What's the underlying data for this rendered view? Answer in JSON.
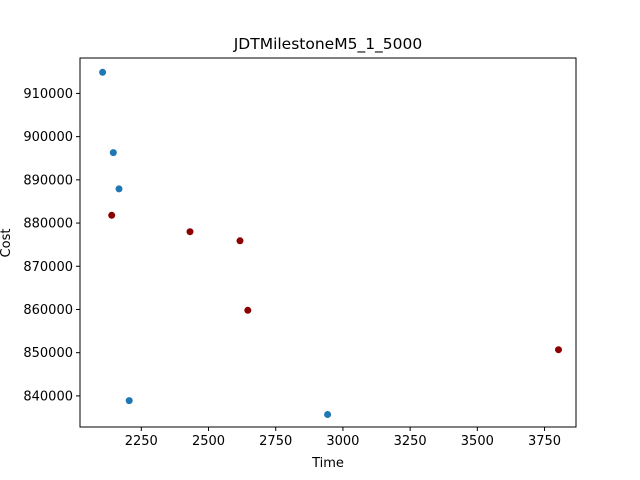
{
  "chart_data": {
    "type": "scatter",
    "title": "JDTMilestoneM5_1_5000",
    "xlabel": "Time",
    "ylabel": "Cost",
    "xlim": [
      2022,
      3867
    ],
    "ylim": [
      832800,
      918200
    ],
    "xticks": [
      2250,
      2500,
      2750,
      3000,
      3250,
      3500,
      3750
    ],
    "yticks": [
      840000,
      850000,
      860000,
      870000,
      880000,
      890000,
      900000,
      910000
    ],
    "grid": false,
    "series": [
      {
        "color": "#1f77b4",
        "points": [
          {
            "x": 2106,
            "y": 914900
          },
          {
            "x": 2146,
            "y": 896300
          },
          {
            "x": 2167,
            "y": 887900
          },
          {
            "x": 2205,
            "y": 838900
          },
          {
            "x": 2943,
            "y": 835700
          }
        ]
      },
      {
        "color": "#8b0000",
        "points": [
          {
            "x": 2140,
            "y": 881800
          },
          {
            "x": 2431,
            "y": 878000
          },
          {
            "x": 2617,
            "y": 875900
          },
          {
            "x": 2646,
            "y": 859800
          },
          {
            "x": 3802,
            "y": 850700
          }
        ]
      }
    ]
  }
}
